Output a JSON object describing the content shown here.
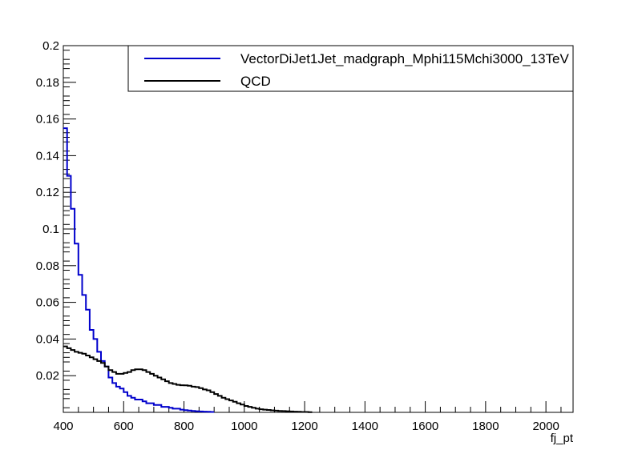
{
  "chart_data": {
    "type": "line",
    "step": true,
    "title": "",
    "xlabel": "fj_pt",
    "ylabel": "",
    "xlim": [
      400,
      2090
    ],
    "ylim": [
      0,
      0.2
    ],
    "bin_start": 400,
    "bin_width": 12.5,
    "x_ticks": [
      {
        "value": 400,
        "label": "400"
      },
      {
        "value": 600,
        "label": "600"
      },
      {
        "value": 800,
        "label": "800"
      },
      {
        "value": 1000,
        "label": "1000"
      },
      {
        "value": 1200,
        "label": "1200"
      },
      {
        "value": 1400,
        "label": "1400"
      },
      {
        "value": 1600,
        "label": "1600"
      },
      {
        "value": 1800,
        "label": "1800"
      },
      {
        "value": 2000,
        "label": "2000"
      }
    ],
    "y_ticks": [
      {
        "value": 0.02,
        "label": "0.02"
      },
      {
        "value": 0.04,
        "label": "0.04"
      },
      {
        "value": 0.06,
        "label": "0.06"
      },
      {
        "value": 0.08,
        "label": "0.08"
      },
      {
        "value": 0.1,
        "label": "0.1"
      },
      {
        "value": 0.12,
        "label": "0.12"
      },
      {
        "value": 0.14,
        "label": "0.14"
      },
      {
        "value": 0.16,
        "label": "0.16"
      },
      {
        "value": 0.18,
        "label": "0.18"
      },
      {
        "value": 0.2,
        "label": "0.2"
      }
    ],
    "legend_position": "top-right",
    "series": [
      {
        "name": "VectorDiJet1Jet_madgraph_Mphi115Mchi3000_13TeV",
        "color": "#0000cc",
        "values": [
          0.155,
          0.129,
          0.111,
          0.092,
          0.075,
          0.064,
          0.056,
          0.045,
          0.04,
          0.033,
          0.028,
          0.025,
          0.019,
          0.016,
          0.014,
          0.013,
          0.011,
          0.009,
          0.008,
          0.007,
          0.007,
          0.006,
          0.005,
          0.005,
          0.004,
          0.004,
          0.003,
          0.003,
          0.0025,
          0.002,
          0.002,
          0.0015,
          0.0012,
          0.001,
          0.0008,
          0.0006,
          0.0005,
          0.0004,
          0.0003,
          0.0002
        ]
      },
      {
        "name": "QCD",
        "color": "#000000",
        "values": [
          0.036,
          0.035,
          0.034,
          0.033,
          0.0325,
          0.032,
          0.031,
          0.03,
          0.029,
          0.028,
          0.027,
          0.025,
          0.023,
          0.022,
          0.021,
          0.021,
          0.0215,
          0.022,
          0.023,
          0.0235,
          0.0235,
          0.023,
          0.022,
          0.021,
          0.02,
          0.019,
          0.018,
          0.017,
          0.016,
          0.0155,
          0.015,
          0.0148,
          0.0147,
          0.0145,
          0.014,
          0.0138,
          0.0132,
          0.0125,
          0.012,
          0.011,
          0.01,
          0.009,
          0.008,
          0.0072,
          0.0065,
          0.0058,
          0.005,
          0.0043,
          0.0035,
          0.003,
          0.0025,
          0.002,
          0.0017,
          0.0015,
          0.0013,
          0.0011,
          0.0009,
          0.0008,
          0.0007,
          0.0006,
          0.0005,
          0.0004,
          0.0003,
          0.0002,
          0.0002,
          0.0001
        ]
      }
    ]
  }
}
